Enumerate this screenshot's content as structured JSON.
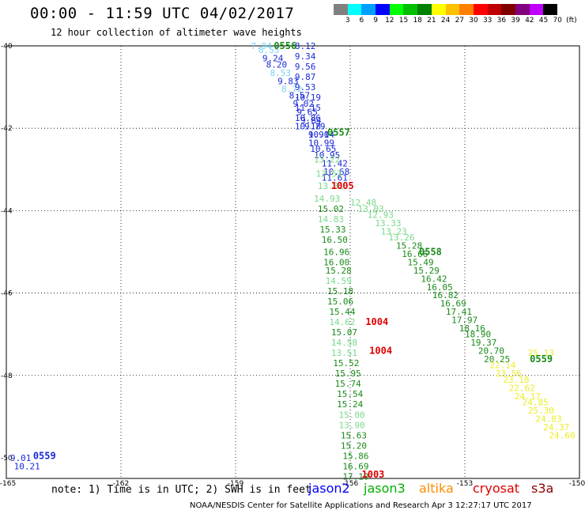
{
  "title": "00:00 - 11:59 UTC 04/02/2017",
  "subtitle": "12 hour collection of altimeter wave heights",
  "colorbar": {
    "colors": [
      "#808080",
      "#00ffff",
      "#00a0ff",
      "#0000ff",
      "#00ff00",
      "#00c000",
      "#008000",
      "#ffff00",
      "#ffc000",
      "#ff8000",
      "#ff0000",
      "#c00000",
      "#800000",
      "#800080",
      "#c000ff",
      "#000000"
    ],
    "labels": [
      "3",
      "6",
      "9",
      "12",
      "15",
      "18",
      "21",
      "24",
      "27",
      "30",
      "33",
      "36",
      "39",
      "42",
      "45",
      "70",
      "(ft)"
    ]
  },
  "axes": {
    "lon_labels": [
      "-165",
      "-162",
      "-159",
      "-156",
      "-153",
      "-150"
    ],
    "lat_labels": [
      "-40",
      "-42",
      "-44",
      "-46",
      "-48",
      "-50"
    ]
  },
  "chart_data": {
    "type": "scatter",
    "units": "ft",
    "points": [
      {
        "lon": -158.6,
        "lat": -40.0,
        "v": "7.94",
        "c": "#79d3f5"
      },
      {
        "lon": -158.4,
        "lat": -40.1,
        "v": "8.55",
        "c": "#79d3f5"
      },
      {
        "lon": -158.3,
        "lat": -40.3,
        "v": "9.24",
        "c": "#1a2ad6"
      },
      {
        "lon": -158.2,
        "lat": -40.45,
        "v": "8.20",
        "c": "#1a2ad6"
      },
      {
        "lon": -158.1,
        "lat": -40.65,
        "v": "8.53",
        "c": "#79d3f5"
      },
      {
        "lon": -157.9,
        "lat": -40.85,
        "v": "9.83",
        "c": "#1a2ad6"
      },
      {
        "lon": -157.8,
        "lat": -41.05,
        "v": "8.72",
        "c": "#79d3f5"
      },
      {
        "lon": -157.6,
        "lat": -41.2,
        "v": "8.57",
        "c": "#1a2ad6"
      },
      {
        "lon": -157.5,
        "lat": -41.4,
        "v": "9.02",
        "c": "#1a2ad6"
      },
      {
        "lon": -157.4,
        "lat": -41.6,
        "v": "9.65",
        "c": "#1a2ad6"
      },
      {
        "lon": -157.3,
        "lat": -41.8,
        "v": "9.84",
        "c": "#1a2ad6"
      },
      {
        "lon": -157.2,
        "lat": -41.95,
        "v": "9.79",
        "c": "#1a2ad6"
      },
      {
        "lon": -157.1,
        "lat": -42.15,
        "v": "9.90",
        "c": "#1a2ad6"
      },
      {
        "lon": -157.1,
        "lat": -42.35,
        "v": "10.99",
        "c": "#1a2ad6"
      },
      {
        "lon": -157.45,
        "lat": -40.0,
        "v": "8.12",
        "c": "#1a2ad6"
      },
      {
        "lon": -157.45,
        "lat": -40.25,
        "v": "9.34",
        "c": "#1a2ad6"
      },
      {
        "lon": -157.45,
        "lat": -40.5,
        "v": "9.56",
        "c": "#1a2ad6"
      },
      {
        "lon": -157.45,
        "lat": -40.75,
        "v": "9.87",
        "c": "#1a2ad6"
      },
      {
        "lon": -157.45,
        "lat": -41.0,
        "v": "9.53",
        "c": "#1a2ad6"
      },
      {
        "lon": -157.45,
        "lat": -41.25,
        "v": "10.19",
        "c": "#1a2ad6"
      },
      {
        "lon": -157.45,
        "lat": -41.5,
        "v": "11.15",
        "c": "#1a2ad6"
      },
      {
        "lon": -157.45,
        "lat": -41.75,
        "v": "10.86",
        "c": "#1a2ad6"
      },
      {
        "lon": -157.45,
        "lat": -41.95,
        "v": "10.18",
        "c": "#1a2ad6"
      },
      {
        "lon": -157.1,
        "lat": -42.15,
        "v": "10.14",
        "c": "#1a2ad6"
      },
      {
        "lon": -157.05,
        "lat": -42.5,
        "v": "10.65",
        "c": "#1a2ad6"
      },
      {
        "lon": -156.95,
        "lat": -42.65,
        "v": "10.95",
        "c": "#1a2ad6"
      },
      {
        "lon": -156.75,
        "lat": -42.85,
        "v": "11.42",
        "c": "#1a2ad6"
      },
      {
        "lon": -156.7,
        "lat": -43.05,
        "v": "10.68",
        "c": "#1a2ad6"
      },
      {
        "lon": -156.75,
        "lat": -43.2,
        "v": "11.61",
        "c": "#1a2ad6"
      },
      {
        "lon": -156.95,
        "lat": -42.75,
        "v": "13.22",
        "c": "#79d98a"
      },
      {
        "lon": -156.9,
        "lat": -43.1,
        "v": "13.53",
        "c": "#79d98a"
      },
      {
        "lon": -156.85,
        "lat": -43.4,
        "v": "13.31",
        "c": "#79d98a"
      },
      {
        "lon": -156.95,
        "lat": -43.7,
        "v": "14.93",
        "c": "#79d98a"
      },
      {
        "lon": -156.85,
        "lat": -43.95,
        "v": "15.02",
        "c": "#198a19"
      },
      {
        "lon": -156.85,
        "lat": -44.2,
        "v": "14.83",
        "c": "#79d98a"
      },
      {
        "lon": -156.8,
        "lat": -44.45,
        "v": "15.33",
        "c": "#198a19"
      },
      {
        "lon": -156.75,
        "lat": -44.7,
        "v": "16.50",
        "c": "#198a19"
      },
      {
        "lon": -156.7,
        "lat": -45.0,
        "v": "16.96",
        "c": "#198a19"
      },
      {
        "lon": -156.7,
        "lat": -45.25,
        "v": "16.00",
        "c": "#198a19"
      },
      {
        "lon": -156.65,
        "lat": -45.45,
        "v": "15.28",
        "c": "#198a19"
      },
      {
        "lon": -156.65,
        "lat": -45.7,
        "v": "14.59",
        "c": "#79d98a"
      },
      {
        "lon": -156.6,
        "lat": -45.95,
        "v": "15.18",
        "c": "#198a19"
      },
      {
        "lon": -156.6,
        "lat": -46.2,
        "v": "15.06",
        "c": "#198a19"
      },
      {
        "lon": -156.55,
        "lat": -46.45,
        "v": "15.44",
        "c": "#198a19"
      },
      {
        "lon": -156.55,
        "lat": -46.7,
        "v": "14.62",
        "c": "#79d98a"
      },
      {
        "lon": -156.5,
        "lat": -46.95,
        "v": "15.07",
        "c": "#198a19"
      },
      {
        "lon": -156.5,
        "lat": -47.2,
        "v": "14.58",
        "c": "#79d98a"
      },
      {
        "lon": -156.5,
        "lat": -47.45,
        "v": "13.51",
        "c": "#79d98a"
      },
      {
        "lon": -156.45,
        "lat": -47.7,
        "v": "15.52",
        "c": "#198a19"
      },
      {
        "lon": -156.4,
        "lat": -47.95,
        "v": "15.95",
        "c": "#198a19"
      },
      {
        "lon": -156.4,
        "lat": -48.2,
        "v": "15.74",
        "c": "#198a19"
      },
      {
        "lon": -156.35,
        "lat": -48.45,
        "v": "15.54",
        "c": "#198a19"
      },
      {
        "lon": -156.35,
        "lat": -48.7,
        "v": "15.24",
        "c": "#198a19"
      },
      {
        "lon": -156.3,
        "lat": -48.95,
        "v": "15.00",
        "c": "#79d98a"
      },
      {
        "lon": -156.3,
        "lat": -49.2,
        "v": "13.90",
        "c": "#79d98a"
      },
      {
        "lon": -156.25,
        "lat": -49.45,
        "v": "15.63",
        "c": "#198a19"
      },
      {
        "lon": -156.25,
        "lat": -49.7,
        "v": "15.20",
        "c": "#198a19"
      },
      {
        "lon": -156.2,
        "lat": -49.95,
        "v": "15.86",
        "c": "#198a19"
      },
      {
        "lon": -156.2,
        "lat": -50.2,
        "v": "16.69",
        "c": "#198a19"
      },
      {
        "lon": -156.2,
        "lat": -50.45,
        "v": "17.10",
        "c": "#198a19"
      },
      {
        "lon": -156.0,
        "lat": -43.8,
        "v": "12.48",
        "c": "#79d98a"
      },
      {
        "lon": -155.8,
        "lat": -43.95,
        "v": "13.03",
        "c": "#79d98a"
      },
      {
        "lon": -155.55,
        "lat": -44.1,
        "v": "12.93",
        "c": "#79d98a"
      },
      {
        "lon": -155.35,
        "lat": -44.3,
        "v": "13.33",
        "c": "#79d98a"
      },
      {
        "lon": -155.2,
        "lat": -44.5,
        "v": "13.23",
        "c": "#79d98a"
      },
      {
        "lon": -155.0,
        "lat": -44.65,
        "v": "13.26",
        "c": "#79d98a"
      },
      {
        "lon": -154.8,
        "lat": -44.85,
        "v": "15.28",
        "c": "#198a19"
      },
      {
        "lon": -154.65,
        "lat": -45.05,
        "v": "16.66",
        "c": "#198a19"
      },
      {
        "lon": -154.5,
        "lat": -45.25,
        "v": "15.49",
        "c": "#198a19"
      },
      {
        "lon": -154.35,
        "lat": -45.45,
        "v": "15.29",
        "c": "#198a19"
      },
      {
        "lon": -154.15,
        "lat": -45.65,
        "v": "16.42",
        "c": "#198a19"
      },
      {
        "lon": -154.0,
        "lat": -45.85,
        "v": "16.05",
        "c": "#198a19"
      },
      {
        "lon": -153.85,
        "lat": -46.05,
        "v": "16.82",
        "c": "#198a19"
      },
      {
        "lon": -153.65,
        "lat": -46.25,
        "v": "16.69",
        "c": "#198a19"
      },
      {
        "lon": -153.5,
        "lat": -46.45,
        "v": "17.41",
        "c": "#198a19"
      },
      {
        "lon": -153.35,
        "lat": -46.65,
        "v": "17.97",
        "c": "#198a19"
      },
      {
        "lon": -153.15,
        "lat": -46.85,
        "v": "18.16",
        "c": "#198a19"
      },
      {
        "lon": -153.0,
        "lat": -47.0,
        "v": "18.90",
        "c": "#198a19"
      },
      {
        "lon": -152.85,
        "lat": -47.2,
        "v": "19.37",
        "c": "#198a19"
      },
      {
        "lon": -152.65,
        "lat": -47.4,
        "v": "20.70",
        "c": "#198a19"
      },
      {
        "lon": -152.5,
        "lat": -47.6,
        "v": "20.25",
        "c": "#198a19"
      },
      {
        "lon": -152.35,
        "lat": -47.75,
        "v": "22.14",
        "c": "#ecec2a"
      },
      {
        "lon": -152.2,
        "lat": -47.95,
        "v": "23.56",
        "c": "#ecec2a"
      },
      {
        "lon": -152.0,
        "lat": -48.1,
        "v": "23.18",
        "c": "#ecec2a"
      },
      {
        "lon": -151.85,
        "lat": -48.3,
        "v": "22.62",
        "c": "#ecec2a"
      },
      {
        "lon": -151.7,
        "lat": -48.5,
        "v": "24.17",
        "c": "#ecec2a"
      },
      {
        "lon": -151.5,
        "lat": -48.65,
        "v": "24.85",
        "c": "#ecec2a"
      },
      {
        "lon": -151.35,
        "lat": -48.85,
        "v": "25.30",
        "c": "#ecec2a"
      },
      {
        "lon": -151.15,
        "lat": -49.05,
        "v": "24.83",
        "c": "#ecec2a"
      },
      {
        "lon": -150.95,
        "lat": -49.25,
        "v": "24.37",
        "c": "#ecec2a"
      },
      {
        "lon": -150.8,
        "lat": -49.45,
        "v": "24.60",
        "c": "#ecec2a"
      },
      {
        "lon": -151.35,
        "lat": -47.45,
        "v": "25.13",
        "c": "#ecec2a"
      },
      {
        "lon": -164.9,
        "lat": -50.0,
        "v": "9.01",
        "c": "#1a2ad6"
      },
      {
        "lon": -164.8,
        "lat": -50.2,
        "v": "10.21",
        "c": "#1a2ad6"
      }
    ],
    "time_labels": [
      {
        "lon": -158.0,
        "lat": -40.0,
        "v": "0556",
        "c": "#198a19"
      },
      {
        "lon": -156.6,
        "lat": -42.1,
        "v": "0557",
        "c": "#198a19"
      },
      {
        "lon": -156.5,
        "lat": -43.4,
        "v": "1005",
        "c": "#e00000"
      },
      {
        "lon": -154.2,
        "lat": -45.0,
        "v": "0558",
        "c": "#198a19"
      },
      {
        "lon": -151.3,
        "lat": -47.6,
        "v": "0559",
        "c": "#198a19"
      },
      {
        "lon": -155.6,
        "lat": -46.7,
        "v": "1004",
        "c": "#e00000"
      },
      {
        "lon": -155.5,
        "lat": -47.4,
        "v": "1004",
        "c": "#e00000"
      },
      {
        "lon": -155.7,
        "lat": -50.4,
        "v": "1003",
        "c": "#e00000"
      },
      {
        "lon": -164.3,
        "lat": -49.95,
        "v": "0559",
        "c": "#1a2ad6"
      }
    ]
  },
  "note": "note: 1) Time is in UTC; 2) SWH is in feet",
  "legend": [
    {
      "label": "jason2",
      "color": "#0000ff"
    },
    {
      "label": "jason3",
      "color": "#00b000"
    },
    {
      "label": "altika",
      "color": "#ff8c00"
    },
    {
      "label": "cryosat",
      "color": "#dd0000"
    },
    {
      "label": "s3a",
      "color": "#8b0000"
    }
  ],
  "credit": "NOAA/NESDIS Center for Satellite Applications and Research   Apr  3 12:27:17 UTC 2017"
}
